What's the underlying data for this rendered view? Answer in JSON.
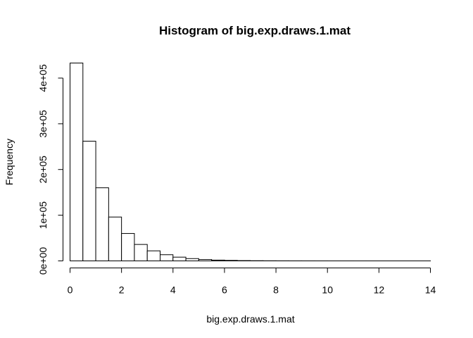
{
  "chart_data": {
    "type": "bar",
    "title": "Histogram of big.exp.draws.1.mat",
    "xlabel": "big.exp.draws.1.mat",
    "ylabel": "Frequency",
    "bin_width": 0.5,
    "bin_starts": [
      0,
      0.5,
      1,
      1.5,
      2,
      2.5,
      3,
      3.5,
      4,
      4.5,
      5,
      5.5,
      6,
      6.5,
      7,
      7.5,
      8,
      8.5,
      9,
      9.5,
      10,
      10.5,
      11,
      11.5,
      12,
      12.5,
      13,
      13.5
    ],
    "values": [
      433000,
      262000,
      160000,
      96000,
      60000,
      36000,
      22000,
      13500,
      8200,
      5000,
      3000,
      1800,
      1100,
      650,
      400,
      240,
      150,
      90,
      55,
      33,
      20,
      12,
      7,
      4,
      3,
      2,
      1,
      1
    ],
    "xlim": [
      0,
      14
    ],
    "ylim": [
      0,
      433000
    ],
    "xticks": [
      0,
      2,
      4,
      6,
      8,
      10,
      12,
      14
    ],
    "xtick_labels": [
      "0",
      "2",
      "4",
      "6",
      "8",
      "10",
      "12",
      "14"
    ],
    "yticks": [
      0,
      100000,
      200000,
      300000,
      400000
    ],
    "ytick_labels": [
      "0e+00",
      "1e+05",
      "2e+05",
      "3e+05",
      "4e+05"
    ],
    "grid": false,
    "legend": "none"
  }
}
